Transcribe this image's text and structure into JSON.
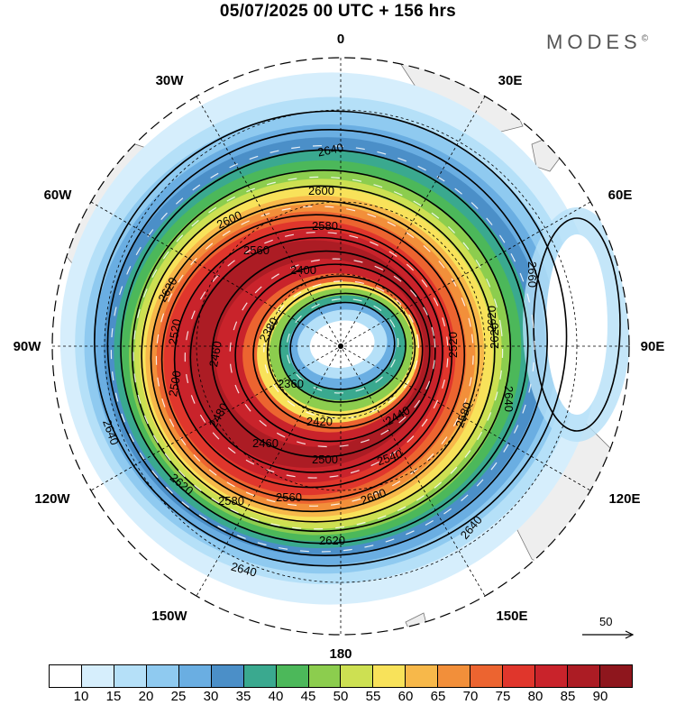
{
  "header": {
    "title": "05/07/2025  00 UTC  + 156 hrs",
    "brand": "MODES",
    "brand_mark": "©"
  },
  "map": {
    "projection": "polar-stereographic-south",
    "center": "South Pole",
    "longitude_labels": {
      "top": "0",
      "bottom": "180",
      "left": "90W",
      "right": "90E",
      "upper_left_inner": "30W",
      "upper_left_outer": "60W",
      "upper_right_inner": "30E",
      "upper_right_outer": "60E",
      "lower_left_inner": "150W",
      "lower_left_outer": "120W",
      "lower_right_inner": "150E",
      "lower_right_outer": "120E"
    },
    "contour_labels": [
      "2640",
      "2600",
      "2600",
      "2580",
      "2620",
      "2560",
      "2400",
      "2380",
      "2360",
      "2520",
      "2460",
      "2500",
      "2480",
      "2420",
      "2440",
      "2460",
      "2500",
      "2540",
      "2580",
      "2560",
      "2600",
      "2620",
      "2640",
      "2660",
      "2620",
      "2640",
      "2520",
      "2580",
      "2640",
      "2620",
      "2620",
      "2640"
    ],
    "reference_vector": "50",
    "colors": {
      "land": "#eeeeee",
      "coast": "#777777",
      "grid": "#000000"
    }
  },
  "colorbar": {
    "ticks": [
      "10",
      "15",
      "20",
      "25",
      "30",
      "35",
      "40",
      "45",
      "50",
      "55",
      "60",
      "65",
      "70",
      "75",
      "80",
      "85",
      "90"
    ],
    "colors": [
      "#ffffff",
      "#d6eefc",
      "#b5e0f8",
      "#8fcaf0",
      "#6aaee2",
      "#4b8fc8",
      "#3aa98f",
      "#4cb85a",
      "#8ccd4e",
      "#cde052",
      "#f8e25a",
      "#f7b84a",
      "#f28f3a",
      "#ec6430",
      "#e0362c",
      "#c9232b",
      "#ac1c24",
      "#8e161d"
    ]
  }
}
